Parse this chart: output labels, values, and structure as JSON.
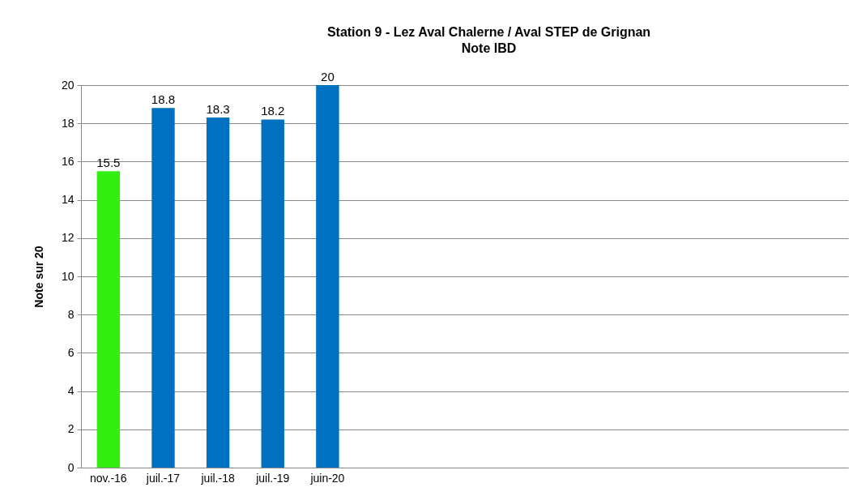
{
  "chart_data": {
    "type": "bar",
    "title": "Station 9 - Lez Aval Chalerne / Aval STEP de Grignan",
    "subtitle": "Note IBD",
    "ylabel": "Note sur 20",
    "categories": [
      "nov.-16",
      "juil.-17",
      "juil.-18",
      "juil.-19",
      "juin-20",
      null,
      null,
      null,
      null,
      null,
      null,
      null,
      null,
      null
    ],
    "values": [
      15.5,
      18.8,
      18.3,
      18.2,
      20,
      null,
      null,
      null,
      null,
      null,
      null,
      null,
      null,
      null
    ],
    "colors": [
      "#33ee11",
      "#0070c0",
      "#0070c0",
      "#0070c0",
      "#0070c0",
      "#0070c0",
      "#0070c0",
      "#0070c0",
      "#0070c0",
      "#0070c0",
      "#0070c0",
      "#0070c0",
      "#0070c0",
      "#0070c0"
    ],
    "ylim": [
      0,
      20
    ],
    "yticks": [
      0,
      2,
      4,
      6,
      8,
      10,
      12,
      14,
      16,
      18,
      20
    ],
    "grid": "y",
    "data_labels": true
  }
}
